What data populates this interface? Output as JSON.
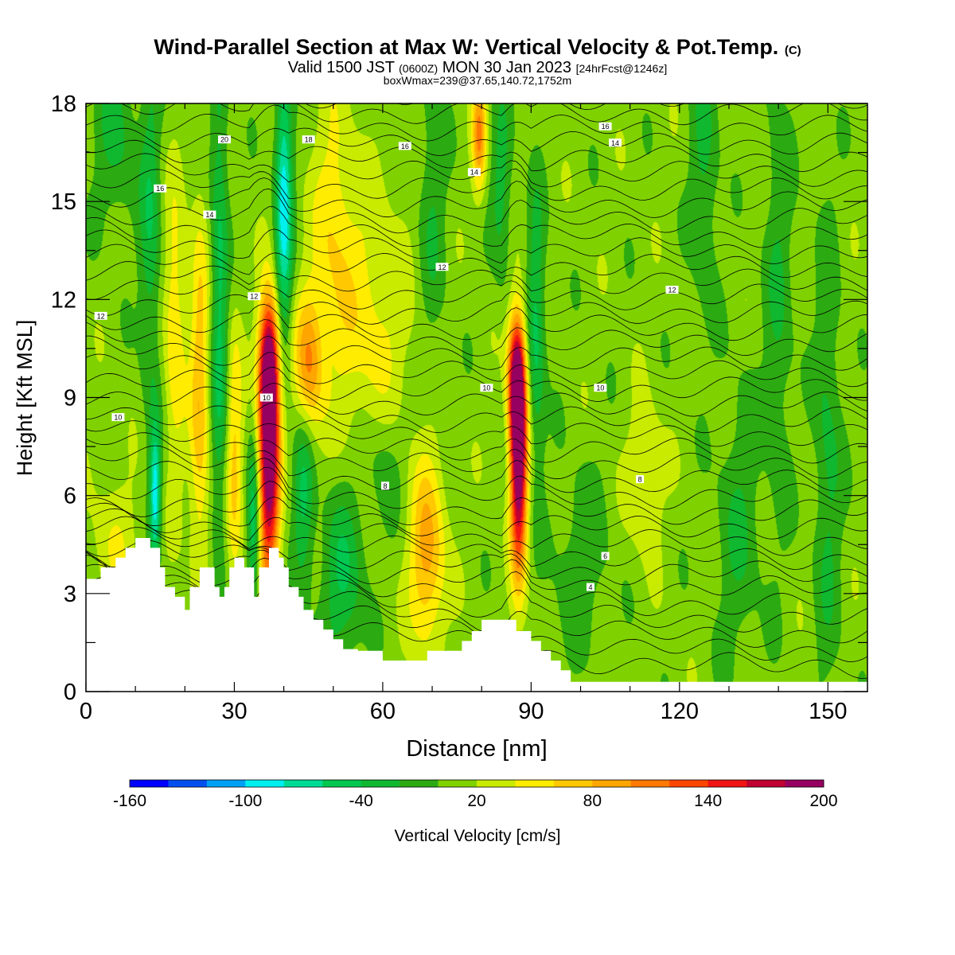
{
  "header": {
    "title": "Wind-Parallel Section at Max W: Vertical Velocity & Pot.Temp.",
    "copyright": "(C)",
    "valid_prefix": "Valid 1500 JST",
    "valid_utc": "(0600Z)",
    "valid_date": "MON 30 Jan 2023",
    "forecast": "[24hrFcst@1246z]",
    "box_info": "boxWmax=239@37.65,140.72,1752m"
  },
  "chart_data": {
    "type": "heatmap",
    "xlabel": "Distance [nm]",
    "ylabel": "Height [Kft MSL]",
    "xlim": [
      0,
      158
    ],
    "ylim": [
      0,
      18
    ],
    "x_ticks": [
      0,
      30,
      60,
      90,
      120,
      150
    ],
    "y_ticks": [
      0,
      3,
      6,
      9,
      12,
      15,
      18
    ],
    "colorbar": {
      "label": "Vertical Velocity [cm/s]",
      "tick_labels": [
        "-160",
        "-100",
        "-40",
        "20",
        "80",
        "140",
        "200"
      ],
      "tick_values": [
        -160,
        -100,
        -40,
        20,
        80,
        140,
        200
      ],
      "boundaries": [
        -160,
        -140,
        -120,
        -100,
        -80,
        -60,
        -40,
        -20,
        0,
        20,
        40,
        60,
        80,
        100,
        120,
        140,
        160,
        180,
        200
      ],
      "colors": [
        "#0000ff",
        "#0050f0",
        "#00a0f5",
        "#00f0f0",
        "#00dc96",
        "#00c850",
        "#10b830",
        "#2caa12",
        "#7fd200",
        "#c8eb00",
        "#ffec00",
        "#ffc800",
        "#ffa500",
        "#ff7800",
        "#ff4600",
        "#f01414",
        "#c00032",
        "#960060"
      ],
      "background_value": 10
    },
    "updrafts": [
      {
        "x": 37,
        "z": 7,
        "w": 200,
        "sx": 1.5,
        "sz": 2.6
      },
      {
        "x": 37,
        "z": 10,
        "w": 150,
        "sx": 1.4,
        "sz": 1.4
      },
      {
        "x": 87.5,
        "z": 7,
        "w": 200,
        "sx": 1.2,
        "sz": 2.4
      },
      {
        "x": 87,
        "z": 9.5,
        "w": 150,
        "sx": 1.2,
        "sz": 1.4
      },
      {
        "x": 69,
        "z": 4.2,
        "w": 80,
        "sx": 2.5,
        "sz": 2
      },
      {
        "x": 45,
        "z": 10,
        "w": 90,
        "sx": 2,
        "sz": 1.5
      },
      {
        "x": 79.5,
        "z": 17,
        "w": 90,
        "sx": 1,
        "sz": 1.2
      },
      {
        "x": 23,
        "z": 9,
        "w": 65,
        "sx": 1.4,
        "sz": 4
      },
      {
        "x": 30,
        "z": 7,
        "w": 55,
        "sx": 1.2,
        "sz": 3
      },
      {
        "x": 18,
        "z": 11,
        "w": 50,
        "sx": 1.5,
        "sz": 3
      },
      {
        "x": 58,
        "z": 11,
        "w": 40,
        "sx": 5,
        "sz": 3
      },
      {
        "x": 50,
        "z": 14,
        "w": 45,
        "sx": 3,
        "sz": 3
      },
      {
        "x": 113,
        "z": 6.5,
        "w": 38,
        "sx": 2.5,
        "sz": 1.5
      },
      {
        "x": 6,
        "z": 4.5,
        "w": 25,
        "sx": 4,
        "sz": 1.5
      }
    ],
    "downdrafts": [
      {
        "x": 40,
        "z": 15,
        "w": -100,
        "sx": 1.2,
        "sz": 3
      },
      {
        "x": 14,
        "z": 6,
        "w": -100,
        "sx": 0.8,
        "sz": 1.5
      },
      {
        "x": 34,
        "z": 5,
        "w": -70,
        "sx": 0.9,
        "sz": 2
      },
      {
        "x": 27,
        "z": 12,
        "w": -55,
        "sx": 1.3,
        "sz": 6
      },
      {
        "x": 44,
        "z": 6,
        "w": -55,
        "sx": 1.5,
        "sz": 2
      },
      {
        "x": 52,
        "z": 3.5,
        "w": -50,
        "sx": 3,
        "sz": 2
      },
      {
        "x": 91,
        "z": 11,
        "w": -55,
        "sx": 1.3,
        "sz": 3
      },
      {
        "x": 13,
        "z": 14,
        "w": -45,
        "sx": 1.5,
        "sz": 4
      },
      {
        "x": 6,
        "z": 17,
        "w": -35,
        "sx": 3,
        "sz": 2
      },
      {
        "x": 60,
        "z": 7,
        "w": -30,
        "sx": 3,
        "sz": 1.5
      },
      {
        "x": 84,
        "z": 15.5,
        "w": -40,
        "sx": 1.5,
        "sz": 2
      },
      {
        "x": 125,
        "z": 16,
        "w": -35,
        "sx": 2,
        "sz": 3
      },
      {
        "x": 140,
        "z": 12,
        "w": -30,
        "sx": 2,
        "sz": 5
      },
      {
        "x": 132,
        "z": 5,
        "w": -30,
        "sx": 3,
        "sz": 3
      },
      {
        "x": 150,
        "z": 7,
        "w": -35,
        "sx": 2,
        "sz": 5
      },
      {
        "x": 100,
        "z": 4,
        "w": -25,
        "sx": 4,
        "sz": 2
      },
      {
        "x": 70,
        "z": 15,
        "w": -30,
        "sx": 2,
        "sz": 3
      }
    ],
    "terrain": [
      [
        0,
        3.45
      ],
      [
        3,
        3.45
      ],
      [
        3,
        3.8
      ],
      [
        6,
        3.8
      ],
      [
        6,
        4.1
      ],
      [
        8,
        4.1
      ],
      [
        8,
        4.4
      ],
      [
        10,
        4.4
      ],
      [
        10,
        4.7
      ],
      [
        13,
        4.7
      ],
      [
        13,
        4.4
      ],
      [
        15,
        4.4
      ],
      [
        15,
        3.8
      ],
      [
        16,
        3.8
      ],
      [
        16,
        3.2
      ],
      [
        18,
        3.2
      ],
      [
        18,
        2.9
      ],
      [
        20,
        2.9
      ],
      [
        20,
        2.5
      ],
      [
        21,
        2.5
      ],
      [
        21,
        3.2
      ],
      [
        23,
        3.2
      ],
      [
        23,
        3.8
      ],
      [
        26,
        3.8
      ],
      [
        26,
        3.2
      ],
      [
        27,
        3.2
      ],
      [
        27,
        2.9
      ],
      [
        28,
        2.9
      ],
      [
        28,
        3.2
      ],
      [
        29,
        3.2
      ],
      [
        29,
        3.8
      ],
      [
        30,
        3.8
      ],
      [
        30,
        4.1
      ],
      [
        32,
        4.1
      ],
      [
        32,
        3.8
      ],
      [
        34,
        3.8
      ],
      [
        34,
        2.9
      ],
      [
        35,
        2.9
      ],
      [
        35,
        3.8
      ],
      [
        37,
        3.8
      ],
      [
        37,
        4.4
      ],
      [
        39,
        4.4
      ],
      [
        39,
        4.1
      ],
      [
        40,
        4.1
      ],
      [
        40,
        3.8
      ],
      [
        41,
        3.8
      ],
      [
        41,
        3.2
      ],
      [
        43,
        3.2
      ],
      [
        43,
        2.9
      ],
      [
        44,
        2.9
      ],
      [
        44,
        2.5
      ],
      [
        46,
        2.5
      ],
      [
        46,
        2.2
      ],
      [
        48,
        2.2
      ],
      [
        48,
        1.9
      ],
      [
        50,
        1.9
      ],
      [
        50,
        1.6
      ],
      [
        52,
        1.6
      ],
      [
        52,
        1.3
      ],
      [
        55,
        1.3
      ],
      [
        55,
        1.25
      ],
      [
        60,
        1.25
      ],
      [
        60,
        0.95
      ],
      [
        69,
        0.95
      ],
      [
        69,
        1.25
      ],
      [
        76,
        1.25
      ],
      [
        76,
        1.55
      ],
      [
        78,
        1.55
      ],
      [
        78,
        1.85
      ],
      [
        80,
        1.85
      ],
      [
        80,
        2.2
      ],
      [
        87,
        2.2
      ],
      [
        87,
        1.85
      ],
      [
        90,
        1.85
      ],
      [
        90,
        1.55
      ],
      [
        92,
        1.55
      ],
      [
        92,
        1.25
      ],
      [
        94,
        1.25
      ],
      [
        94,
        0.95
      ],
      [
        96,
        0.95
      ],
      [
        96,
        0.65
      ],
      [
        98,
        0.65
      ],
      [
        98,
        0.3
      ],
      [
        158,
        0.3
      ]
    ],
    "theta_contours": {
      "labels": [
        {
          "text": "20",
          "x": 28,
          "z": 16.9
        },
        {
          "text": "18",
          "x": 45,
          "z": 16.9
        },
        {
          "text": "16",
          "x": 64.5,
          "z": 16.7
        },
        {
          "text": "16",
          "x": 105,
          "z": 17.3
        },
        {
          "text": "16",
          "x": 15,
          "z": 15.4
        },
        {
          "text": "14",
          "x": 25,
          "z": 14.6
        },
        {
          "text": "14",
          "x": 78.5,
          "z": 15.9
        },
        {
          "text": "14",
          "x": 107,
          "z": 16.8
        },
        {
          "text": "12",
          "x": 3,
          "z": 11.5
        },
        {
          "text": "12",
          "x": 34,
          "z": 12.1
        },
        {
          "text": "12",
          "x": 72,
          "z": 13
        },
        {
          "text": "12",
          "x": 118.5,
          "z": 12.3
        },
        {
          "text": "10",
          "x": 6.5,
          "z": 8.4
        },
        {
          "text": "10",
          "x": 36.5,
          "z": 9
        },
        {
          "text": "10",
          "x": 81,
          "z": 9.3
        },
        {
          "text": "10",
          "x": 104,
          "z": 9.3
        },
        {
          "text": "8",
          "x": 60.5,
          "z": 6.3
        },
        {
          "text": "8",
          "x": 112,
          "z": 6.5
        },
        {
          "text": "6",
          "x": 105,
          "z": 4.15
        },
        {
          "text": "4",
          "x": 102,
          "z": 3.2
        }
      ]
    }
  }
}
